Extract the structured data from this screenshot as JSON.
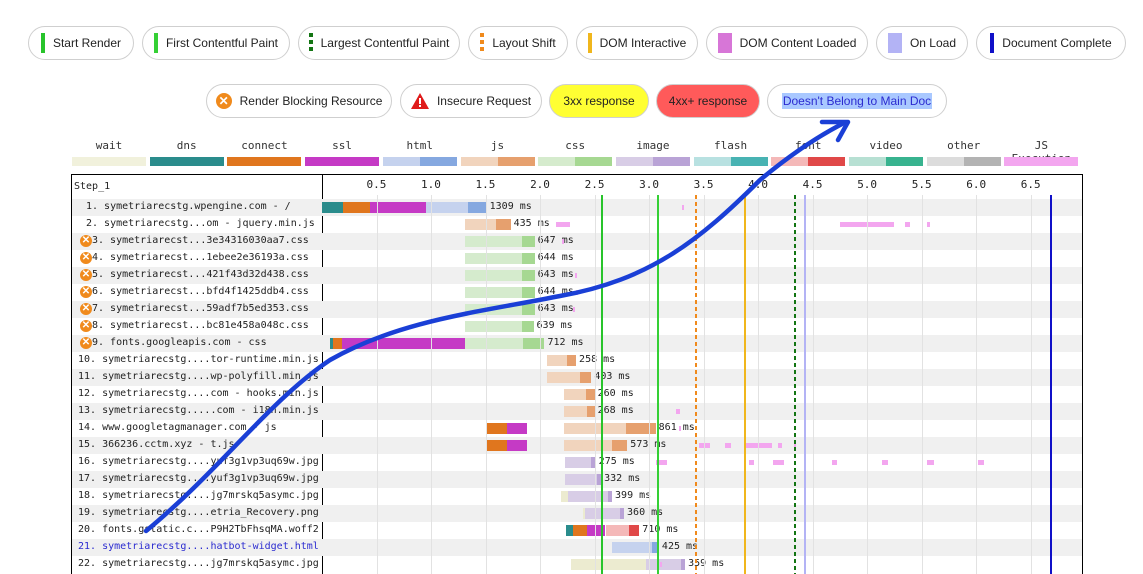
{
  "legend_markers": [
    {
      "label": "Start Render",
      "color": "#28c42b",
      "style": "solid"
    },
    {
      "label": "First Contentful Paint",
      "color": "#35d035",
      "style": "solid"
    },
    {
      "label": "Largest Contentful Paint",
      "color": "#137513",
      "style": "dashed"
    },
    {
      "label": "Layout Shift",
      "color": "#f08a1c",
      "style": "dashed"
    },
    {
      "label": "DOM Interactive",
      "color": "#f0b61c",
      "style": "solid"
    },
    {
      "label": "DOM Content Loaded",
      "color": "#d776d7",
      "style": "block"
    },
    {
      "label": "On Load",
      "color": "#b3b3f5",
      "style": "block"
    },
    {
      "label": "Document Complete",
      "color": "#1010c8",
      "style": "solid"
    }
  ],
  "legend_status": [
    {
      "label": "Render Blocking Resource",
      "icon": "render-blocking-icon"
    },
    {
      "label": "Insecure Request",
      "icon": "warning-icon"
    },
    {
      "label": "3xx response",
      "bg": "#ffff33"
    },
    {
      "label": "4xx+ response",
      "bg": "#ff5a5a"
    },
    {
      "label": "Doesn't Belong to Main Doc",
      "highlight": "#a9c8ff"
    }
  ],
  "legend_types": [
    {
      "label": "wait",
      "c1": "#f1f1dc",
      "c2": "#f1f1dc"
    },
    {
      "label": "dns",
      "c1": "#2a8c8c",
      "c2": "#2a8c8c"
    },
    {
      "label": "connect",
      "c1": "#e0761e",
      "c2": "#e0761e"
    },
    {
      "label": "ssl",
      "c1": "#c53ac5",
      "c2": "#c53ac5"
    },
    {
      "label": "html",
      "c1": "#c5d2ee",
      "c2": "#85a8e0"
    },
    {
      "label": "js",
      "c1": "#f1d4bd",
      "c2": "#e6a06e"
    },
    {
      "label": "css",
      "c1": "#d5ebcd",
      "c2": "#a6d892"
    },
    {
      "label": "image",
      "c1": "#d8cde6",
      "c2": "#b9a3d6"
    },
    {
      "label": "flash",
      "c1": "#b8e1e1",
      "c2": "#48b3b3"
    },
    {
      "label": "font",
      "c1": "#f4b8b8",
      "c2": "#e04848"
    },
    {
      "label": "video",
      "c1": "#b7e0d3",
      "c2": "#38b38f"
    },
    {
      "label": "other",
      "c1": "#dcdcdc",
      "c2": "#b3b3b3"
    },
    {
      "label": "JS Execution",
      "c1": "#f3a6ef",
      "c2": "#f3a6ef"
    }
  ],
  "waterfall": {
    "step_label": "Step_1",
    "ticks": [
      "0.5",
      "1.0",
      "1.5",
      "2.0",
      "2.5",
      "3.0",
      "3.5",
      "4.0",
      "4.5",
      "5.0",
      "5.5",
      "6.0",
      "6.5"
    ],
    "tick_values": [
      0.5,
      1.0,
      1.5,
      2.0,
      2.5,
      3.0,
      3.5,
      4.0,
      4.5,
      5.0,
      5.5,
      6.0,
      6.5
    ],
    "axis_max": 6.97,
    "markers": [
      {
        "name": "start-render-line",
        "t": 2.56,
        "color": "#28c42b",
        "dashed": false
      },
      {
        "name": "fcp-line",
        "t": 3.07,
        "color": "#35d035",
        "dashed": false
      },
      {
        "name": "layout-shift-line",
        "t": 3.42,
        "color": "#f08a1c",
        "dashed": true
      },
      {
        "name": "dom-interactive-line",
        "t": 3.87,
        "color": "#f0b61c",
        "dashed": false
      },
      {
        "name": "lcp-line",
        "t": 4.33,
        "color": "#137513",
        "dashed": true
      },
      {
        "name": "onload-line",
        "t": 4.42,
        "color": "#b3b3f5",
        "dashed": false
      },
      {
        "name": "document-complete-line",
        "t": 6.68,
        "color": "#1010c8",
        "dashed": false
      }
    ],
    "rows": [
      {
        "label": "1. symetriarecstg.wpengine.com - /",
        "blocking": false,
        "blue": false,
        "ms": "1309 ms",
        "type": "html",
        "start": 0.95,
        "dl": 1.34,
        "end": 1.51,
        "dns": 0.0,
        "conn": 0.19,
        "ssl": 0.44
      },
      {
        "label": "2. symetriarecstg...om - jquery.min.js",
        "blocking": false,
        "blue": false,
        "ms": "435 ms",
        "type": "js",
        "start": 1.31,
        "dl": 1.6,
        "end": 1.73
      },
      {
        "label": "3. symetriarecst...3e34316030aa7.css",
        "blocking": true,
        "blue": false,
        "ms": "647 ms",
        "type": "css",
        "start": 1.31,
        "dl": 1.83,
        "end": 1.95
      },
      {
        "label": "4. symetriarecst...1ebee2e36193a.css",
        "blocking": true,
        "blue": false,
        "ms": "644 ms",
        "type": "css",
        "start": 1.31,
        "dl": 1.83,
        "end": 1.95
      },
      {
        "label": "5. symetriarecst...421f43d32d438.css",
        "blocking": true,
        "blue": false,
        "ms": "643 ms",
        "type": "css",
        "start": 1.31,
        "dl": 1.83,
        "end": 1.95
      },
      {
        "label": "6. symetriarecst...bfd4f1425ddb4.css",
        "blocking": true,
        "blue": false,
        "ms": "644 ms",
        "type": "css",
        "start": 1.31,
        "dl": 1.83,
        "end": 1.95
      },
      {
        "label": "7. symetriarecst...59adf7b5ed353.css",
        "blocking": true,
        "blue": false,
        "ms": "643 ms",
        "type": "css",
        "start": 1.31,
        "dl": 1.83,
        "end": 1.95
      },
      {
        "label": "8. symetriarecst...bc81e458a048c.css",
        "blocking": true,
        "blue": false,
        "ms": "639 ms",
        "type": "css",
        "start": 1.31,
        "dl": 1.83,
        "end": 1.94
      },
      {
        "label": "9. fonts.googleapis.com - css",
        "blocking": true,
        "blue": false,
        "ms": "712 ms",
        "type": "css",
        "start": 1.31,
        "dl": 1.84,
        "end": 2.04,
        "dns": 0.07,
        "conn": 0.1,
        "ssl": 0.18
      },
      {
        "label": "10. symetriarecstg....tor-runtime.min.js",
        "blocking": false,
        "blue": false,
        "ms": "258 ms",
        "type": "js",
        "start": 2.06,
        "dl": 2.25,
        "end": 2.33
      },
      {
        "label": "11. symetriarecstg....wp-polyfill.min.js",
        "blocking": false,
        "blue": false,
        "ms": "403 ms",
        "type": "js",
        "start": 2.06,
        "dl": 2.37,
        "end": 2.47
      },
      {
        "label": "12. symetriarecstg....com - hooks.min.js",
        "blocking": false,
        "blue": false,
        "ms": "260 ms",
        "type": "js",
        "start": 2.22,
        "dl": 2.42,
        "end": 2.5
      },
      {
        "label": "13. symetriarecstg.....com - i18n.min.js",
        "blocking": false,
        "blue": false,
        "ms": "268 ms",
        "type": "js",
        "start": 2.22,
        "dl": 2.43,
        "end": 2.5
      },
      {
        "label": "14. www.googletagmanager.com - js",
        "blocking": false,
        "blue": false,
        "ms": "861 ms",
        "type": "js",
        "start": 2.22,
        "dl": 2.79,
        "end": 3.06,
        "pre0": 1.51,
        "pre1": 1.88
      },
      {
        "label": "15. 366236.cctm.xyz - t.js",
        "blocking": false,
        "blue": false,
        "ms": "573 ms",
        "type": "js",
        "start": 2.22,
        "dl": 2.66,
        "end": 2.8,
        "pre0": 1.51,
        "pre1": 1.88
      },
      {
        "label": "16. symetriarecstg....yuf3g1vp3uq69w.jpg",
        "blocking": false,
        "blue": false,
        "ms": "275 ms",
        "type": "image",
        "start": 2.23,
        "dl": 2.47,
        "end": 2.51
      },
      {
        "label": "17. symetriarecstg....yuf3g1vp3uq69w.jpg",
        "blocking": false,
        "blue": false,
        "ms": "332 ms",
        "type": "image",
        "start": 2.23,
        "dl": 2.52,
        "end": 2.56
      },
      {
        "label": "18. symetriarecstg....jg7mrskq5asymc.jpg",
        "blocking": false,
        "blue": false,
        "ms": "399 ms",
        "type": "image",
        "start": 2.26,
        "dl": 2.62,
        "end": 2.66,
        "pre0": 2.19,
        "pre1": 2.26
      },
      {
        "label": "19. symetriarecstg....etria_Recovery.png",
        "blocking": false,
        "blue": false,
        "ms": "360 ms",
        "type": "image",
        "start": 2.41,
        "dl": 2.73,
        "end": 2.77,
        "pre0": 2.39,
        "pre1": 2.41
      },
      {
        "label": "20. fonts.gstatic.c...P9H2TbFhsqMA.woff2",
        "blocking": false,
        "blue": false,
        "ms": "710 ms",
        "type": "font",
        "start": 2.6,
        "dl": 2.82,
        "end": 2.91,
        "dns": 2.24,
        "conn": 2.3,
        "ssl": 2.43
      },
      {
        "label": "21. symetriarecstg....hatbot-widget.html",
        "blocking": false,
        "blue": true,
        "ms": "425 ms",
        "type": "html",
        "start": 2.66,
        "dl": 3.03,
        "end": 3.09
      },
      {
        "label": "22. symetriarecstg....jg7mrskq5asymc.jpg",
        "blocking": false,
        "blue": false,
        "ms": "359 ms",
        "type": "image",
        "start": 2.97,
        "dl": 3.29,
        "end": 3.33,
        "pre0": 2.28,
        "pre1": 2.97
      }
    ],
    "js_exec": [
      {
        "row": 0,
        "t": 3.3,
        "w": 0.02
      },
      {
        "row": 1,
        "t": 2.15,
        "w": 0.12
      },
      {
        "row": 1,
        "t": 4.75,
        "w": 0.5
      },
      {
        "row": 1,
        "t": 5.35,
        "w": 0.04
      },
      {
        "row": 1,
        "t": 5.55,
        "w": 0.03
      },
      {
        "row": 2,
        "t": 2.2,
        "w": 0.02
      },
      {
        "row": 4,
        "t": 2.32,
        "w": 0.02
      },
      {
        "row": 5,
        "t": 2.33,
        "w": 0.02
      },
      {
        "row": 6,
        "t": 2.3,
        "w": 0.02
      },
      {
        "row": 12,
        "t": 3.25,
        "w": 0.03
      },
      {
        "row": 13,
        "t": 3.27,
        "w": 0.02
      },
      {
        "row": 14,
        "t": 3.46,
        "w": 0.1
      },
      {
        "row": 14,
        "t": 3.7,
        "w": 0.05
      },
      {
        "row": 14,
        "t": 3.88,
        "w": 0.25
      },
      {
        "row": 14,
        "t": 4.18,
        "w": 0.04
      },
      {
        "row": 14,
        "t": 4.33,
        "w": 0.02
      },
      {
        "row": 15,
        "t": 3.06,
        "w": 0.1
      },
      {
        "row": 15,
        "t": 3.92,
        "w": 0.04
      },
      {
        "row": 15,
        "t": 4.14,
        "w": 0.1
      },
      {
        "row": 15,
        "t": 4.68,
        "w": 0.04
      },
      {
        "row": 15,
        "t": 5.14,
        "w": 0.05
      },
      {
        "row": 15,
        "t": 5.55,
        "w": 0.06
      },
      {
        "row": 15,
        "t": 6.02,
        "w": 0.05
      },
      {
        "row": 21,
        "t": 3.1,
        "w": 0.02
      }
    ]
  },
  "annotation": {
    "name": "hand-drawn-arrow",
    "color": "#1a3fd6"
  }
}
